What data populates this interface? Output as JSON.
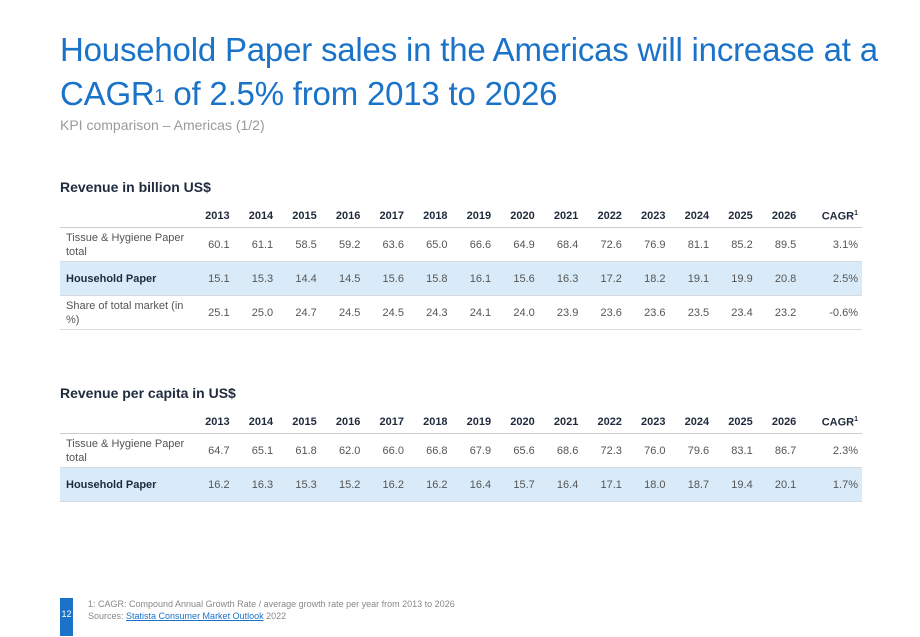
{
  "title": {
    "main_before": "Household Paper sales in the Americas will increase at a CAGR",
    "sup": "1",
    "main_after": " of 2.5% from 2013 to 2026"
  },
  "subtitle": "KPI comparison – Americas (1/2)",
  "revenue_table": {
    "title": "Revenue in billion US$",
    "years": [
      "2013",
      "2014",
      "2015",
      "2016",
      "2017",
      "2018",
      "2019",
      "2020",
      "2021",
      "2022",
      "2023",
      "2024",
      "2025",
      "2026"
    ],
    "cagr_label": "CAGR",
    "cagr_sup": "1",
    "rows": [
      {
        "label": "Tissue & Hygiene Paper total",
        "values": [
          "60.1",
          "61.1",
          "58.5",
          "59.2",
          "63.6",
          "65.0",
          "66.6",
          "64.9",
          "68.4",
          "72.6",
          "76.9",
          "81.1",
          "85.2",
          "89.5"
        ],
        "cagr": "3.1%"
      },
      {
        "label": "Household Paper",
        "values": [
          "15.1",
          "15.3",
          "14.4",
          "14.5",
          "15.6",
          "15.8",
          "16.1",
          "15.6",
          "16.3",
          "17.2",
          "18.2",
          "19.1",
          "19.9",
          "20.8"
        ],
        "cagr": "2.5%"
      },
      {
        "label": "Share of total market (in %)",
        "values": [
          "25.1",
          "25.0",
          "24.7",
          "24.5",
          "24.5",
          "24.3",
          "24.1",
          "24.0",
          "23.9",
          "23.6",
          "23.6",
          "23.5",
          "23.4",
          "23.2"
        ],
        "cagr": "-0.6%"
      }
    ]
  },
  "capita_table": {
    "title": "Revenue per capita in US$",
    "years": [
      "2013",
      "2014",
      "2015",
      "2016",
      "2017",
      "2018",
      "2019",
      "2020",
      "2021",
      "2022",
      "2023",
      "2024",
      "2025",
      "2026"
    ],
    "cagr_label": "CAGR",
    "cagr_sup": "1",
    "rows": [
      {
        "label": "Tissue & Hygiene Paper total",
        "values": [
          "64.7",
          "65.1",
          "61.8",
          "62.0",
          "66.0",
          "66.8",
          "67.9",
          "65.6",
          "68.6",
          "72.3",
          "76.0",
          "79.6",
          "83.1",
          "86.7"
        ],
        "cagr": "2.3%"
      },
      {
        "label": "Household Paper",
        "values": [
          "16.2",
          "16.3",
          "15.3",
          "15.2",
          "16.2",
          "16.2",
          "16.4",
          "15.7",
          "16.4",
          "17.1",
          "18.0",
          "18.7",
          "19.4",
          "20.1"
        ],
        "cagr": "1.7%"
      }
    ]
  },
  "footnotes": {
    "note1": "1: CAGR: Compound Annual Growth Rate / average growth rate per year from 2013 to 2026",
    "sources_label": "Sources: ",
    "sources_link": "Statista Consumer Market Outlook",
    "sources_year": " 2022"
  },
  "page_number": "12",
  "colors": {
    "accent": "#1a73c8",
    "highlight": "#d9ebf9"
  }
}
